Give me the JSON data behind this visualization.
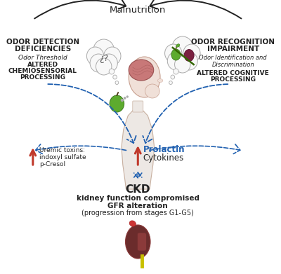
{
  "bg_color": "#ffffff",
  "title": "Malnutrition",
  "left_title_line1": "ODOR DETECTION",
  "left_title_line2": "DEFICIENCIES",
  "left_italic": "Odor Threshold",
  "left_bold1": "ALTERED",
  "left_bold2": "CHEMIOSENSORIAL",
  "left_bold3": "PROCESSING",
  "right_title_line1": "ODOR RECOGNITION",
  "right_title_line2": "IMPAIRMENT",
  "right_italic1": "Odor Identification and",
  "right_italic2": "Discrimination",
  "right_bold1": "ALTERED COGNITIVE",
  "right_bold2": "PROCESSING",
  "prolactin_label": "Prolactin",
  "cytokines_label": "Cytokines",
  "ckd_label": "CKD",
  "ckd_sub1": "kidney function compromised",
  "ckd_sub2": "GFR alteration",
  "ckd_sub3": "(progression from stages G1-G5)",
  "uremic_line1": "Uremic toxins:",
  "uremic_line2": "indoxyl sulfate",
  "uremic_line3": "p-Cresol",
  "arrow_black": "#222222",
  "arrow_blue": "#2060b0",
  "arrow_red": "#c0392b",
  "text_blue": "#2060b0",
  "text_black": "#222222",
  "head_face": "#f0e0d8",
  "head_edge": "#c8a090",
  "brain_face": "#c87878",
  "brain_edge": "#9a5050",
  "body_face": "#ede8e4",
  "body_edge": "#c8b0a0",
  "bubble_face": "#f8f8f8",
  "bubble_edge": "#aaaaaa",
  "apple_green": "#5dab2e",
  "apple_edge": "#3d7a1e",
  "onion_face": "#7a2040",
  "onion_edge": "#5a1030",
  "kidney_dark": "#6b2c2c",
  "kidney_mid": "#8b3a3a",
  "kidney_light": "#b05050"
}
